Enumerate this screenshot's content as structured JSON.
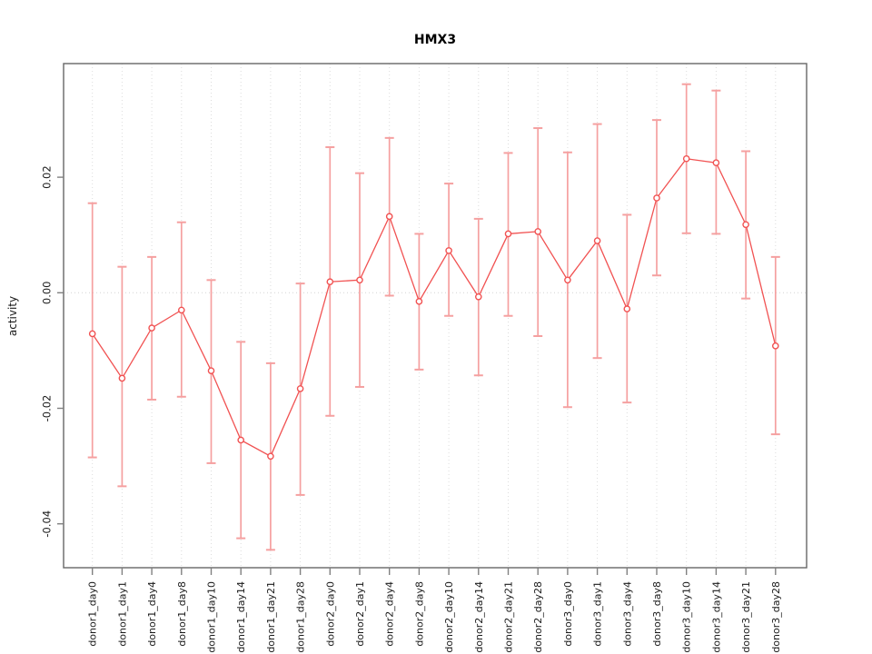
{
  "chart": {
    "title": "HMX3",
    "ylabel": "activity"
  },
  "colors": {
    "background": "#ffffff",
    "box": "#666666",
    "tick": "#808080",
    "text": "#1a1a1a",
    "grid": "#dcdcdc",
    "zero_line": "#d4d4d4",
    "line": "#f15252",
    "marker": "#f15252",
    "error_bar": "#f5a0a0"
  },
  "chart_data": {
    "type": "line",
    "title": "HMX3",
    "xlabel": "",
    "ylabel": "activity",
    "legend": "none",
    "marker": "open-circle",
    "grid": {
      "vertical": "dotted at every category",
      "horizontal": "dotted at y=0"
    },
    "ylim": [
      -0.0475,
      0.0396
    ],
    "yticks": {
      "values": [
        0.02,
        0.0,
        -0.02,
        -0.04
      ],
      "labels": [
        "0.02",
        "0.00",
        "-0.02",
        "-0.04"
      ]
    },
    "categories": [
      "donor1_day0",
      "donor1_day1",
      "donor1_day4",
      "donor1_day8",
      "donor1_day10",
      "donor1_day14",
      "donor1_day21",
      "donor1_day28",
      "donor2_day0",
      "donor2_day1",
      "donor2_day4",
      "donor2_day8",
      "donor2_day10",
      "donor2_day14",
      "donor2_day21",
      "donor2_day28",
      "donor3_day0",
      "donor3_day1",
      "donor3_day4",
      "donor3_day8",
      "donor3_day10",
      "donor3_day14",
      "donor3_day21",
      "donor3_day28"
    ],
    "series": [
      {
        "name": "activity",
        "values": [
          -0.0071,
          -0.0148,
          -0.0061,
          -0.003,
          -0.0135,
          -0.0255,
          -0.0283,
          -0.0166,
          0.0019,
          0.0022,
          0.0132,
          -0.0015,
          0.0073,
          -0.0007,
          0.0102,
          0.0106,
          0.0022,
          0.009,
          -0.0028,
          0.0164,
          0.0232,
          0.0225,
          0.0118,
          -0.0092
        ]
      }
    ],
    "error_bars": {
      "high": [
        0.0155,
        0.0045,
        0.0062,
        0.0122,
        0.0022,
        -0.0085,
        -0.0122,
        0.0016,
        0.0252,
        0.0207,
        0.0268,
        0.0102,
        0.0189,
        0.0128,
        0.0242,
        0.0285,
        0.0243,
        0.0292,
        0.0135,
        0.0299,
        0.0361,
        0.035,
        0.0245,
        0.0062
      ],
      "low": [
        -0.0285,
        -0.0335,
        -0.0185,
        -0.018,
        -0.0295,
        -0.0425,
        -0.0445,
        -0.035,
        -0.0213,
        -0.0163,
        -0.0005,
        -0.0133,
        -0.004,
        -0.0143,
        -0.004,
        -0.0075,
        -0.0198,
        -0.0113,
        -0.019,
        0.003,
        0.0103,
        0.0102,
        -0.001,
        -0.0245
      ]
    }
  }
}
